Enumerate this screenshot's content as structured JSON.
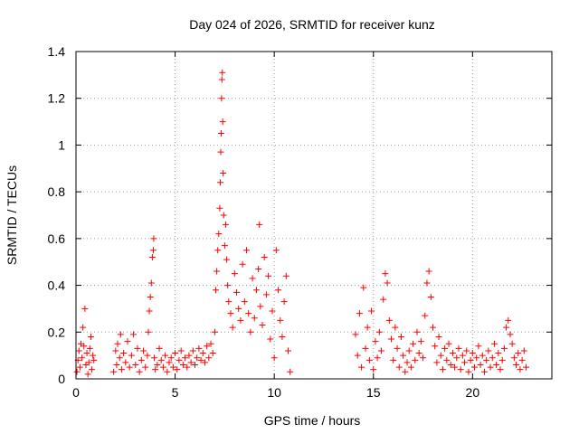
{
  "chart_data": {
    "type": "scatter",
    "title": "Day 024 of 2026, SRMTID for receiver kunz",
    "xlabel": "GPS time / hours",
    "ylabel": "SRMTID / TECUs",
    "xlim": [
      0,
      24
    ],
    "ylim": [
      0,
      1.4
    ],
    "xticks": [
      "0",
      "5",
      "10",
      "15",
      "20"
    ],
    "xtick_values": [
      0,
      5,
      10,
      15,
      20
    ],
    "yticks": [
      "0",
      "0.2",
      "0.4",
      "0.6",
      "0.8",
      "1",
      "1.2",
      "1.4"
    ],
    "ytick_values": [
      0,
      0.2,
      0.4,
      0.6,
      0.8,
      1.0,
      1.2,
      1.4
    ],
    "grid": true,
    "marker": "+",
    "color": "#ff0000",
    "series": [
      {
        "name": "SRMTID",
        "points": [
          [
            0.05,
            0.03
          ],
          [
            0.1,
            0.08
          ],
          [
            0.15,
            0.12
          ],
          [
            0.2,
            0.05
          ],
          [
            0.25,
            0.15
          ],
          [
            0.3,
            0.09
          ],
          [
            0.35,
            0.22
          ],
          [
            0.4,
            0.14
          ],
          [
            0.45,
            0.3
          ],
          [
            0.5,
            0.06
          ],
          [
            0.55,
            0.11
          ],
          [
            0.6,
            0.02
          ],
          [
            0.65,
            0.07
          ],
          [
            0.7,
            0.13
          ],
          [
            0.75,
            0.18
          ],
          [
            0.8,
            0.04
          ],
          [
            0.85,
            0.1
          ],
          [
            0.9,
            0.08
          ],
          [
            1.9,
            0.03
          ],
          [
            2.0,
            0.12
          ],
          [
            2.05,
            0.06
          ],
          [
            2.1,
            0.15
          ],
          [
            2.2,
            0.09
          ],
          [
            2.25,
            0.19
          ],
          [
            2.3,
            0.04
          ],
          [
            2.4,
            0.11
          ],
          [
            2.5,
            0.07
          ],
          [
            2.6,
            0.16
          ],
          [
            2.7,
            0.05
          ],
          [
            2.8,
            0.1
          ],
          [
            2.9,
            0.19
          ],
          [
            3.0,
            0.06
          ],
          [
            3.1,
            0.13
          ],
          [
            3.2,
            0.03
          ],
          [
            3.3,
            0.08
          ],
          [
            3.4,
            0.12
          ],
          [
            3.5,
            0.05
          ],
          [
            3.6,
            0.1
          ],
          [
            3.65,
            0.2
          ],
          [
            3.7,
            0.29
          ],
          [
            3.75,
            0.35
          ],
          [
            3.8,
            0.41
          ],
          [
            3.85,
            0.52
          ],
          [
            3.9,
            0.55
          ],
          [
            3.92,
            0.6
          ],
          [
            3.95,
            0.09
          ],
          [
            4.0,
            0.04
          ],
          [
            4.1,
            0.06
          ],
          [
            4.2,
            0.13
          ],
          [
            4.3,
            0.08
          ],
          [
            4.4,
            0.05
          ],
          [
            4.5,
            0.1
          ],
          [
            4.6,
            0.03
          ],
          [
            4.7,
            0.07
          ],
          [
            4.8,
            0.09
          ],
          [
            4.9,
            0.05
          ],
          [
            5.0,
            0.11
          ],
          [
            5.1,
            0.04
          ],
          [
            5.2,
            0.08
          ],
          [
            5.3,
            0.12
          ],
          [
            5.4,
            0.06
          ],
          [
            5.5,
            0.09
          ],
          [
            5.6,
            0.05
          ],
          [
            5.7,
            0.1
          ],
          [
            5.8,
            0.07
          ],
          [
            5.9,
            0.12
          ],
          [
            6.0,
            0.06
          ],
          [
            6.1,
            0.09
          ],
          [
            6.2,
            0.13
          ],
          [
            6.3,
            0.08
          ],
          [
            6.4,
            0.11
          ],
          [
            6.5,
            0.07
          ],
          [
            6.6,
            0.14
          ],
          [
            6.7,
            0.09
          ],
          [
            6.8,
            0.15
          ],
          [
            6.9,
            0.11
          ],
          [
            7.0,
            0.2
          ],
          [
            7.05,
            0.38
          ],
          [
            7.1,
            0.46
          ],
          [
            7.15,
            0.55
          ],
          [
            7.2,
            0.62
          ],
          [
            7.25,
            0.73
          ],
          [
            7.28,
            0.84
          ],
          [
            7.3,
            0.97
          ],
          [
            7.32,
            1.05
          ],
          [
            7.34,
            1.2
          ],
          [
            7.36,
            1.28
          ],
          [
            7.38,
            1.31
          ],
          [
            7.4,
            1.1
          ],
          [
            7.42,
            0.88
          ],
          [
            7.45,
            0.7
          ],
          [
            7.5,
            0.57
          ],
          [
            7.55,
            0.66
          ],
          [
            7.6,
            0.51
          ],
          [
            7.65,
            0.4
          ],
          [
            7.7,
            0.33
          ],
          [
            7.8,
            0.28
          ],
          [
            7.9,
            0.22
          ],
          [
            8.0,
            0.45
          ],
          [
            8.1,
            0.37
          ],
          [
            8.2,
            0.3
          ],
          [
            8.3,
            0.25
          ],
          [
            8.4,
            0.49
          ],
          [
            8.5,
            0.33
          ],
          [
            8.6,
            0.55
          ],
          [
            8.7,
            0.28
          ],
          [
            8.8,
            0.2
          ],
          [
            8.9,
            0.43
          ],
          [
            9.0,
            0.26
          ],
          [
            9.1,
            0.38
          ],
          [
            9.2,
            0.47
          ],
          [
            9.25,
            0.66
          ],
          [
            9.3,
            0.31
          ],
          [
            9.4,
            0.23
          ],
          [
            9.5,
            0.52
          ],
          [
            9.6,
            0.36
          ],
          [
            9.7,
            0.44
          ],
          [
            9.8,
            0.17
          ],
          [
            9.9,
            0.29
          ],
          [
            10.0,
            0.09
          ],
          [
            10.1,
            0.55
          ],
          [
            10.2,
            0.38
          ],
          [
            10.3,
            0.25
          ],
          [
            10.4,
            0.18
          ],
          [
            10.5,
            0.33
          ],
          [
            10.6,
            0.44
          ],
          [
            10.7,
            0.12
          ],
          [
            10.8,
            0.03
          ],
          [
            14.1,
            0.19
          ],
          [
            14.2,
            0.1
          ],
          [
            14.3,
            0.28
          ],
          [
            14.4,
            0.05
          ],
          [
            14.5,
            0.39
          ],
          [
            14.6,
            0.13
          ],
          [
            14.7,
            0.22
          ],
          [
            14.8,
            0.08
          ],
          [
            14.9,
            0.29
          ],
          [
            15.0,
            0.04
          ],
          [
            15.1,
            0.16
          ],
          [
            15.2,
            0.09
          ],
          [
            15.3,
            0.2
          ],
          [
            15.4,
            0.12
          ],
          [
            15.5,
            0.34
          ],
          [
            15.6,
            0.45
          ],
          [
            15.7,
            0.41
          ],
          [
            15.8,
            0.25
          ],
          [
            15.9,
            0.17
          ],
          [
            16.0,
            0.08
          ],
          [
            16.1,
            0.22
          ],
          [
            16.2,
            0.13
          ],
          [
            16.3,
            0.05
          ],
          [
            16.4,
            0.18
          ],
          [
            16.5,
            0.1
          ],
          [
            16.6,
            0.03
          ],
          [
            16.7,
            0.07
          ],
          [
            16.8,
            0.12
          ],
          [
            16.9,
            0.05
          ],
          [
            17.0,
            0.15
          ],
          [
            17.1,
            0.08
          ],
          [
            17.2,
            0.2
          ],
          [
            17.3,
            0.11
          ],
          [
            17.4,
            0.16
          ],
          [
            17.5,
            0.09
          ],
          [
            17.6,
            0.27
          ],
          [
            17.7,
            0.41
          ],
          [
            17.8,
            0.46
          ],
          [
            17.9,
            0.35
          ],
          [
            18.0,
            0.22
          ],
          [
            18.1,
            0.14
          ],
          [
            18.2,
            0.07
          ],
          [
            18.3,
            0.18
          ],
          [
            18.4,
            0.1
          ],
          [
            18.5,
            0.04
          ],
          [
            18.6,
            0.13
          ],
          [
            18.7,
            0.08
          ],
          [
            18.8,
            0.15
          ],
          [
            18.9,
            0.06
          ],
          [
            19.0,
            0.11
          ],
          [
            19.1,
            0.05
          ],
          [
            19.2,
            0.09
          ],
          [
            19.3,
            0.13
          ],
          [
            19.4,
            0.04
          ],
          [
            19.5,
            0.1
          ],
          [
            19.6,
            0.07
          ],
          [
            19.7,
            0.12
          ],
          [
            19.8,
            0.03
          ],
          [
            19.9,
            0.08
          ],
          [
            20.0,
            0.11
          ],
          [
            20.1,
            0.05
          ],
          [
            20.2,
            0.09
          ],
          [
            20.3,
            0.14
          ],
          [
            20.4,
            0.06
          ],
          [
            20.5,
            0.1
          ],
          [
            20.6,
            0.03
          ],
          [
            20.7,
            0.08
          ],
          [
            20.8,
            0.12
          ],
          [
            20.9,
            0.05
          ],
          [
            21.0,
            0.09
          ],
          [
            21.1,
            0.15
          ],
          [
            21.2,
            0.06
          ],
          [
            21.3,
            0.11
          ],
          [
            21.4,
            0.04
          ],
          [
            21.5,
            0.08
          ],
          [
            21.6,
            0.13
          ],
          [
            21.7,
            0.22
          ],
          [
            21.8,
            0.25
          ],
          [
            21.9,
            0.19
          ],
          [
            22.0,
            0.15
          ],
          [
            22.1,
            0.09
          ],
          [
            22.2,
            0.06
          ],
          [
            22.3,
            0.11
          ],
          [
            22.4,
            0.04
          ],
          [
            22.5,
            0.08
          ],
          [
            22.6,
            0.12
          ],
          [
            22.7,
            0.05
          ]
        ]
      }
    ]
  }
}
